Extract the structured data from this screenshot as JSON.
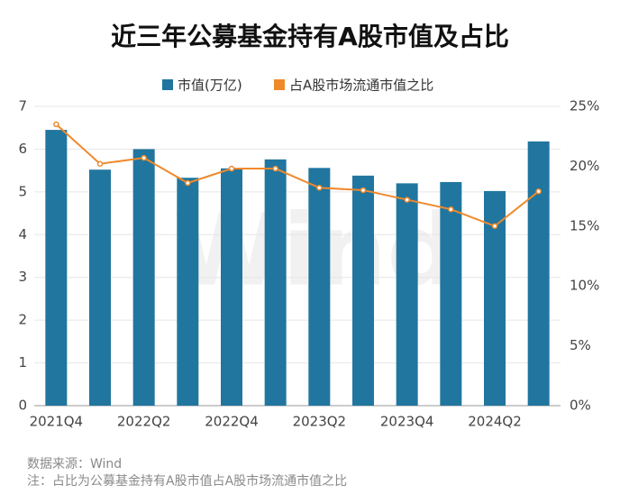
{
  "chart_data": {
    "type": "bar",
    "title": "近三年公募基金持有A股市值及占比",
    "categories": [
      "2021Q4",
      null,
      "2022Q2",
      null,
      "2022Q4",
      null,
      "2023Q2",
      null,
      "2023Q4",
      null,
      "2024Q2",
      null
    ],
    "series": [
      {
        "name": "市值(万亿)",
        "color": "#21769f",
        "values": [
          6.45,
          5.52,
          6.0,
          5.33,
          5.55,
          5.76,
          5.56,
          5.38,
          5.2,
          5.23,
          5.02,
          6.18
        ]
      },
      {
        "name": "占A股市场流通市值之比",
        "color": "#f0892b",
        "axis": "y2",
        "type": "line",
        "values": [
          23.5,
          20.2,
          20.7,
          18.6,
          19.8,
          19.8,
          18.2,
          18.0,
          17.2,
          16.4,
          15.0,
          17.9
        ]
      }
    ],
    "ylim": [
      0,
      7
    ],
    "yticks": [
      0,
      1,
      2,
      3,
      4,
      5,
      6,
      7
    ],
    "y2lim": [
      0,
      25
    ],
    "y2ticks": [
      {
        "value": 0,
        "label": "0%"
      },
      {
        "value": 5,
        "label": "5%"
      },
      {
        "value": 10,
        "label": "10%"
      },
      {
        "value": 15,
        "label": "15%"
      },
      {
        "value": 20,
        "label": "20%"
      },
      {
        "value": 25,
        "label": "25%"
      }
    ],
    "grid": true,
    "legend": "top",
    "watermark": "Wind",
    "source": "数据来源：Wind",
    "note": "注：占比为公募基金持有A股市值占A股市场流通市值之比"
  }
}
